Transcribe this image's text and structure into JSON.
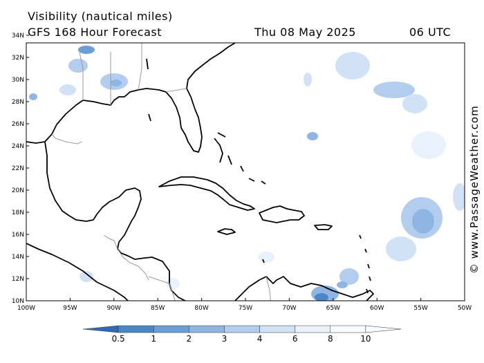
{
  "header": {
    "line1": "Visibility (nautical miles)",
    "line2": "GFS 168 Hour Forecast",
    "date": "Thu 08 May 2025",
    "time": "06 UTC"
  },
  "credit": "© www.PassageWeather.com",
  "map": {
    "lat_labels": [
      "34N",
      "32N",
      "30N",
      "28N",
      "26N",
      "24N",
      "22N",
      "20N",
      "18N",
      "16N",
      "14N",
      "12N",
      "10N"
    ],
    "lon_labels": [
      "100W",
      "95W",
      "90W",
      "85W",
      "80W",
      "75W",
      "70W",
      "65W",
      "60W",
      "55W",
      "50W"
    ],
    "lat_range": [
      10,
      35
    ],
    "lon_range": [
      -100,
      -50
    ]
  },
  "legend": {
    "labels": [
      "0.5",
      "1",
      "2",
      "3",
      "4",
      "6",
      "8",
      "10"
    ],
    "colors": [
      "#2e6bb4",
      "#4a86c8",
      "#6a9ed6",
      "#8fb6e2",
      "#b2cdee",
      "#d2e2f6",
      "#e9f1fb",
      "#f7fafe"
    ]
  }
}
